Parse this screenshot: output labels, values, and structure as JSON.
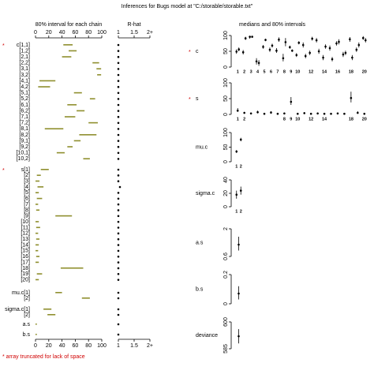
{
  "title": "Inferences for Bugs model at \"C:/storable/storable.txt\"",
  "footnote": "*  array truncated for lack of space",
  "marker": "*",
  "chart_data": [
    {
      "type": "interval",
      "title": "80% interval for each chain",
      "color": "#8f8f2e",
      "categories": [
        "c[1,1]",
        "[1,2]",
        "[2,1]",
        "[2,2]",
        "[3,1]",
        "[3,2]",
        "[4,1]",
        "[4,2]",
        "[5,1]",
        "[5,2]",
        "[6,1]",
        "[6,2]",
        "[7,1]",
        "[7,2]",
        "[8,1]",
        "[8,2]",
        "[9,1]",
        "[9,2]",
        "[10,1]",
        "[10,2]",
        "s[1]",
        "[2]",
        "[3]",
        "[4]",
        "[5]",
        "[6]",
        "[7]",
        "[8]",
        "[9]",
        "[10]",
        "[11]",
        "[12]",
        "[13]",
        "[14]",
        "[15]",
        "[16]",
        "[17]",
        "[18]",
        "[19]",
        "[20]",
        "mu.c[1]",
        "[2]",
        "sigma.c[1]",
        "[2]",
        "a.s",
        "b.s"
      ],
      "low": [
        42,
        50,
        40,
        86,
        92,
        93,
        6,
        4,
        58,
        82,
        48,
        62,
        44,
        80,
        14,
        66,
        58,
        48,
        32,
        72,
        8,
        2,
        0,
        3,
        0,
        2,
        0,
        1,
        30,
        0,
        1,
        0,
        1,
        0,
        0,
        1,
        0,
        38,
        2,
        0,
        30,
        70,
        12,
        18,
        0,
        0
      ],
      "high": [
        56,
        62,
        54,
        96,
        99,
        99,
        30,
        22,
        70,
        90,
        62,
        74,
        60,
        94,
        42,
        92,
        68,
        56,
        44,
        82,
        20,
        8,
        6,
        12,
        5,
        10,
        4,
        6,
        55,
        5,
        7,
        4,
        6,
        5,
        4,
        6,
        5,
        72,
        10,
        5,
        40,
        82,
        24,
        30,
        2,
        2
      ],
      "xlim": [
        0,
        100
      ],
      "xticks": [
        0,
        20,
        40,
        60,
        80,
        100
      ]
    },
    {
      "type": "rhat",
      "title": "R-hat",
      "values": [
        1,
        1,
        1,
        1,
        1,
        1,
        1,
        1,
        1,
        1,
        1,
        1,
        1,
        1,
        1,
        1,
        1,
        1,
        1,
        1,
        1,
        1,
        1,
        1.05,
        1,
        1,
        1,
        1,
        1,
        1,
        1,
        1,
        1,
        1,
        1,
        1,
        1,
        1,
        1,
        1,
        1,
        1,
        1,
        1,
        1,
        1
      ],
      "xlim": [
        1,
        2
      ],
      "xticks": [
        1,
        1.5,
        {
          "value": 2,
          "label": "2+"
        }
      ]
    },
    {
      "type": "medians",
      "title": "medians and 80% intervals",
      "panels": [
        {
          "name": "c",
          "ylim": [
            0,
            100
          ],
          "yticks": [
            0,
            50,
            100
          ],
          "categories": [
            "1",
            "2",
            "3",
            "4",
            "5",
            "6",
            "7",
            "8",
            "9",
            "10",
            null,
            "12",
            null,
            "14",
            null,
            "16",
            null,
            "18",
            null,
            "20"
          ],
          "series": [
            {
              "median": [
                49,
                47,
                96,
                18,
                64,
                55,
                52,
                28,
                63,
                38,
                70,
                45,
                85,
                30,
                60,
                75,
                40,
                88,
                55,
                92
              ],
              "low": [
                42,
                40,
                90,
                8,
                58,
                48,
                45,
                18,
                58,
                32,
                62,
                38,
                78,
                22,
                52,
                68,
                32,
                80,
                48,
                86
              ],
              "high": [
                56,
                54,
                99,
                28,
                70,
                62,
                60,
                42,
                68,
                44,
                78,
                52,
                92,
                38,
                68,
                82,
                48,
                95,
                62,
                98
              ]
            },
            {
              "median": [
                56,
                91,
                96,
                13,
                86,
                68,
                87,
                79,
                52,
                77,
                35,
                90,
                50,
                65,
                25,
                80,
                45,
                30,
                70,
                85
              ],
              "low": [
                50,
                86,
                93,
                4,
                82,
                62,
                80,
                66,
                48,
                72,
                28,
                84,
                42,
                58,
                18,
                72,
                38,
                22,
                62,
                78
              ],
              "high": [
                62,
                96,
                99,
                22,
                90,
                74,
                94,
                92,
                56,
                82,
                42,
                96,
                58,
                72,
                32,
                88,
                52,
                38,
                78,
                92
              ]
            }
          ]
        },
        {
          "name": "s",
          "ylim": [
            0,
            100
          ],
          "yticks": [
            0,
            50,
            100
          ],
          "categories": [
            "1",
            "2",
            null,
            null,
            null,
            null,
            null,
            "8",
            "9",
            "10",
            null,
            "12",
            null,
            "14",
            null,
            null,
            null,
            "18",
            null,
            "20"
          ],
          "series": [
            {
              "median": [
                12,
                5,
                3,
                7,
                2,
                6,
                2,
                3,
                40,
                2,
                4,
                2,
                3,
                2,
                2,
                3,
                2,
                52,
                5,
                2
              ],
              "low": [
                8,
                2,
                0,
                3,
                0,
                2,
                0,
                1,
                30,
                0,
                1,
                0,
                1,
                0,
                0,
                1,
                0,
                38,
                2,
                0
              ],
              "high": [
                20,
                8,
                6,
                12,
                5,
                10,
                4,
                6,
                55,
                5,
                7,
                4,
                6,
                5,
                4,
                6,
                5,
                72,
                10,
                5
              ]
            }
          ]
        },
        {
          "name": "mu.c",
          "ylim": [
            0,
            100
          ],
          "yticks": [
            0,
            50,
            100
          ],
          "categories": [
            "1",
            "2"
          ],
          "series": [
            {
              "median": [
                35,
                76
              ],
              "low": [
                30,
                70
              ],
              "high": [
                40,
                82
              ]
            }
          ]
        },
        {
          "name": "sigma.c",
          "ylim": [
            0,
            40
          ],
          "yticks": [
            0,
            20,
            40
          ],
          "categories": [
            "1",
            "2"
          ],
          "series": [
            {
              "median": [
                18,
                24
              ],
              "low": [
                12,
                18
              ],
              "high": [
                24,
                30
              ]
            }
          ]
        },
        {
          "name": "a.s",
          "ylim": [
            0.6,
            2
          ],
          "yticks": [
            0.6,
            2
          ],
          "series": [
            {
              "median": [
                1.2
              ],
              "low": [
                0.9
              ],
              "high": [
                1.6
              ]
            }
          ]
        },
        {
          "name": "b.s",
          "ylim": [
            0,
            0.2
          ],
          "yticks": [
            0,
            0.2
          ],
          "series": [
            {
              "median": [
                0.07
              ],
              "low": [
                0.03
              ],
              "high": [
                0.12
              ]
            }
          ]
        },
        {
          "name": "deviance",
          "ylim": [
            585,
            600
          ],
          "yticks": [
            585,
            600
          ],
          "series": [
            {
              "median": [
                592
              ],
              "low": [
                588
              ],
              "high": [
                596
              ]
            }
          ]
        }
      ]
    }
  ]
}
